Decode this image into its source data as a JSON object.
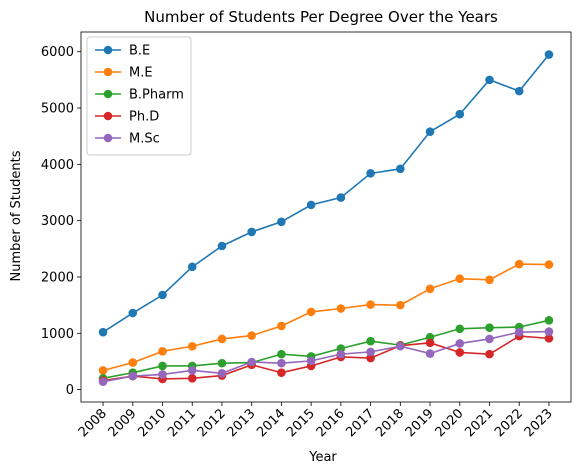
{
  "chart_data": {
    "type": "line",
    "title": "Number of Students Per Degree Over the Years",
    "xlabel": "Year",
    "ylabel": "Number of Students",
    "x": [
      "2008",
      "2009",
      "2010",
      "2011",
      "2012",
      "2013",
      "2014",
      "2015",
      "2016",
      "2017",
      "2018",
      "2019",
      "2020",
      "2021",
      "2022",
      "2023"
    ],
    "yticks": [
      0,
      1000,
      2000,
      3000,
      4000,
      5000,
      6000
    ],
    "ylim": [
      -220,
      6350
    ],
    "grid": false,
    "legend_position": "top-left",
    "series": [
      {
        "name": "B.E",
        "color": "#1f77b4",
        "values": [
          1020,
          1360,
          1680,
          2180,
          2550,
          2800,
          2980,
          3280,
          3410,
          3840,
          3920,
          4580,
          4890,
          5500,
          5300,
          5950
        ]
      },
      {
        "name": "M.E",
        "color": "#ff7f0e",
        "values": [
          340,
          480,
          680,
          770,
          900,
          960,
          1130,
          1380,
          1440,
          1510,
          1500,
          1790,
          1970,
          1950,
          2230,
          2220
        ]
      },
      {
        "name": "B.Pharm",
        "color": "#2ca02c",
        "values": [
          200,
          300,
          420,
          420,
          470,
          480,
          630,
          590,
          730,
          860,
          790,
          930,
          1080,
          1100,
          1110,
          1230
        ]
      },
      {
        "name": "Ph.D",
        "color": "#d62728",
        "values": [
          160,
          240,
          190,
          200,
          250,
          440,
          300,
          420,
          580,
          560,
          780,
          830,
          660,
          630,
          950,
          910
        ]
      },
      {
        "name": "M.Sc",
        "color": "#9467bd",
        "values": [
          140,
          240,
          270,
          340,
          290,
          490,
          470,
          510,
          630,
          670,
          770,
          640,
          820,
          900,
          1020,
          1030
        ]
      }
    ]
  }
}
